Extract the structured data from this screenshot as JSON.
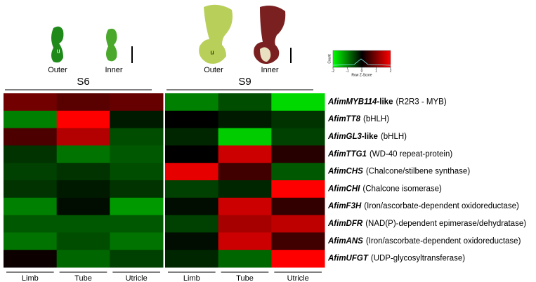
{
  "chart_data": {
    "type": "heatmap",
    "groups": [
      "S6",
      "S9"
    ],
    "columns": [
      "Limb",
      "Tube",
      "Utricle",
      "Limb",
      "Tube",
      "Utricle"
    ],
    "rows": [
      {
        "name": "AfimMYB114",
        "suffix": "-like",
        "description": "(R2R3 - MYB)"
      },
      {
        "name": "AfimTT8",
        "description": "(bHLH)"
      },
      {
        "name": "AfimGL3",
        "suffix": "-like",
        "description": "(bHLH)"
      },
      {
        "name": "AfimTTG1",
        "description": "(WD-40 repeat-protein)"
      },
      {
        "name": "AfimCHS",
        "description": "(Chalcone/stilbene synthase)"
      },
      {
        "name": "AfimCHI",
        "description": "(Chalcone isomerase)"
      },
      {
        "name": "AfimF3H",
        "description": "(Iron/ascorbate-dependent oxidoreductase)"
      },
      {
        "name": "AfimDFR",
        "description": "(NAD(P)-dependent epimerase/dehydratase)"
      },
      {
        "name": "AfimANS",
        "description": "(Iron/ascorbate-dependent oxidoreductase)"
      },
      {
        "name": "AfimUFGT",
        "description": "(UDP-glycosyltransferase)"
      }
    ],
    "values": [
      [
        0.9,
        0.7,
        0.8,
        -1.0,
        -0.6,
        -1.7
      ],
      [
        -1.0,
        2.0,
        -0.2,
        0.0,
        -0.2,
        -0.4
      ],
      [
        0.6,
        1.4,
        -0.6,
        -0.3,
        -1.6,
        -0.5
      ],
      [
        -0.4,
        -0.9,
        -0.7,
        0.0,
        1.6,
        0.3
      ],
      [
        -0.5,
        -0.4,
        -0.6,
        1.8,
        0.5,
        -0.7
      ],
      [
        -0.4,
        -0.2,
        -0.4,
        -0.5,
        -0.3,
        2.0
      ],
      [
        -1.0,
        -0.1,
        -1.2,
        -0.1,
        1.6,
        0.4
      ],
      [
        -0.7,
        -0.7,
        -0.7,
        -0.5,
        1.3,
        1.5
      ],
      [
        -0.9,
        -0.6,
        -0.9,
        -0.1,
        1.6,
        0.5
      ],
      [
        0.1,
        -0.8,
        -0.5,
        -0.3,
        -0.8,
        2.0
      ]
    ],
    "colorscale": [
      "#00ff00",
      "#000000",
      "#ff0000"
    ],
    "colorbar": {
      "ylabel": "Count",
      "xlabel": "Row Z-Score",
      "lim": [
        -2,
        2
      ],
      "ticks": [
        -2,
        -1,
        0,
        1,
        2
      ]
    }
  },
  "photos": {
    "labels": [
      "Outer",
      "Inner",
      "Outer",
      "Inner"
    ],
    "marker": "u"
  }
}
